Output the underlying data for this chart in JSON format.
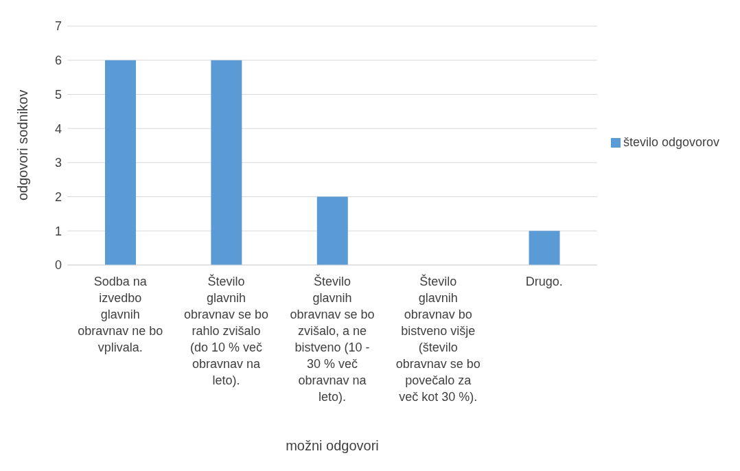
{
  "chart_data": {
    "type": "bar",
    "xlabel": "možni odgovori",
    "ylabel": "odgovori sodnikov",
    "categories": [
      "Sodba na izvedbo glavnih obravnav ne bo vplivala.",
      "Število glavnih obravnav se bo rahlo zvišalo (do 10 % več obravnav na leto).",
      "Število glavnih obravnav se bo zvišalo, a ne bistveno (10 - 30 % več obravnav na leto).",
      "Število glavnih obravnav bo bistveno višje (število obravnav se bo povečalo za več kot 30 %).",
      "Drugo."
    ],
    "series": [
      {
        "name": "število odgovorov",
        "color": "#5b9bd5",
        "values": [
          6,
          6,
          2,
          0,
          1
        ]
      }
    ],
    "ylim": [
      0,
      7
    ],
    "yticks": [
      0,
      1,
      2,
      3,
      4,
      5,
      6,
      7
    ],
    "grid": "y",
    "legend": "right"
  }
}
